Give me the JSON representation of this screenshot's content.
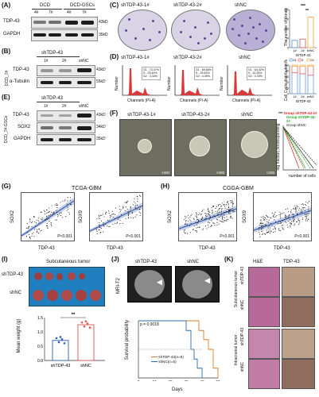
{
  "panels": {
    "A": "(A)",
    "B": "(B)",
    "C": "(C)",
    "D": "(D)",
    "E": "(E)",
    "F": "(F)",
    "G": "(G)",
    "H": "(H)",
    "I": "(I)",
    "J": "(J)",
    "K": "(K)"
  },
  "A": {
    "groups": [
      "DCD",
      "DCD-GSCs"
    ],
    "lanes": [
      "4#",
      "7#",
      "4#",
      "7#"
    ],
    "rows": [
      "TDP-43",
      "GAPDH"
    ],
    "sizes": [
      "43kD",
      "35kD"
    ]
  },
  "B": {
    "title": "shTDP-43",
    "lanes": [
      "1#",
      "2#",
      "shNC"
    ],
    "side": "DCD_7#",
    "rows": [
      "TDP-43",
      "α-Tubulin"
    ],
    "sizes": [
      "43kD",
      "55kD"
    ]
  },
  "C": {
    "dishes": [
      "shTDP-43-1#",
      "shTDP-43-2#",
      "shNC"
    ],
    "bar": {
      "ylabel": "The number of clones",
      "xlabels": [
        "1#",
        "2#",
        "shNC"
      ],
      "group": "shTDP-43",
      "sig": [
        "***",
        "**"
      ],
      "yticks": [
        "0",
        "50",
        "100",
        "150",
        "200"
      ]
    }
  },
  "D": {
    "hist_titles": [
      "shTDP-43-1#",
      "shTDP-43-2#",
      "shNC"
    ],
    "ylabel": "Number",
    "xlabel": "Channels (PI-A)",
    "legends": [
      [
        "G1 : 73.07%",
        "S : 23.49%",
        "G2 : 3.44%"
      ],
      [
        "G1 : 69.68%",
        "S : 25.83%",
        "G2 : 4.49%"
      ],
      [
        "G1 : 64.42%",
        "S : 32.25%",
        "G2 : 3.33%"
      ]
    ],
    "bar": {
      "ylabel": "Cell Cycle distribution%",
      "legend": [
        "G1",
        "S",
        "G2"
      ],
      "xlabels": [
        "1#",
        "2#",
        "shNC"
      ],
      "group": "shTDP-43",
      "yticks": [
        "0",
        "20",
        "40",
        "60",
        "80",
        "100"
      ]
    }
  },
  "E": {
    "title": "shTDP-43",
    "lanes": [
      "1#",
      "2#",
      "shNC"
    ],
    "side": "DCD_7#-GSCs",
    "rows": [
      "TDP-43",
      "SOX2",
      "GAPDH"
    ],
    "sizes": [
      "43kD",
      "34kD",
      "35kD"
    ]
  },
  "F": {
    "images": [
      "shTDP-43-1#",
      "shTDP-43-2#",
      "shNC"
    ],
    "scale": "×200",
    "ylabel": "log fraction nonresponding",
    "xlabel": "number of cells",
    "legend": [
      "Group shTDP-43-1#",
      "Group shTDP-43-2#",
      "Group shNC"
    ],
    "sig": "***"
  },
  "G": {
    "title": "TCGA-GBM",
    "plots": [
      {
        "y": "SOX2",
        "x": "TDP-43",
        "p": "P<0.001"
      },
      {
        "y": "SOX9",
        "x": "TDP-43",
        "p": "P<0.001"
      }
    ]
  },
  "H": {
    "title": "CGGA-GBM",
    "plots": [
      {
        "y": "SOX2",
        "x": "TDP-43",
        "p": "P<0.001"
      },
      {
        "y": "SOX9",
        "x": "TDP-43",
        "p": "P<0.001"
      }
    ]
  },
  "I": {
    "title": "Subcutaneous tumor",
    "rows": [
      "shTDP-43",
      "shNC"
    ],
    "ylabel": "Mean weight (g)",
    "xlabels": [
      "shTDP-43",
      "shNC"
    ],
    "sig": "**",
    "yticks": [
      "0.0",
      "0.5",
      "1.0",
      "1.5"
    ]
  },
  "J": {
    "labels": [
      "shTDP-43",
      "shNC"
    ],
    "mri": "MRI-T2",
    "p": "p = 0.0018",
    "ylabel": "Survival probability",
    "xlabel": "Days",
    "legend": [
      "shTDP-43(n=6)",
      "shNC(n=6)"
    ],
    "xticks": [
      "0",
      "10",
      "20",
      "30",
      "40",
      "50"
    ]
  },
  "K": {
    "cols": [
      "H&E",
      "TDP-43"
    ],
    "groups": [
      "Subcutaneous tumor",
      "Intracranial tumor"
    ],
    "rows": [
      "shTDP-43",
      "shNC",
      "shTDP-43",
      "shNC"
    ]
  },
  "chart_data": [
    {
      "type": "bar",
      "title": "",
      "categories": [
        "1#",
        "2#",
        "shNC"
      ],
      "values": [
        38,
        45,
        160
      ],
      "ylabel": "The number of clones",
      "ylim": [
        0,
        200
      ]
    },
    {
      "type": "bar",
      "title": "",
      "categories": [
        "1#",
        "2#",
        "shNC"
      ],
      "series": [
        {
          "name": "G1",
          "values": [
            73.07,
            69.68,
            64.42
          ]
        },
        {
          "name": "S",
          "values": [
            23.49,
            25.83,
            32.25
          ]
        },
        {
          "name": "G2",
          "values": [
            3.44,
            4.49,
            3.33
          ]
        }
      ],
      "ylabel": "Cell Cycle distribution%",
      "ylim": [
        0,
        100
      ]
    },
    {
      "type": "bar",
      "title": "",
      "categories": [
        "shTDP-43",
        "shNC"
      ],
      "values": [
        0.7,
        1.25
      ],
      "ylabel": "Mean weight (g)",
      "ylim": [
        0,
        1.5
      ]
    },
    {
      "type": "line",
      "title": "",
      "xlabel": "Days",
      "ylabel": "Survival probability",
      "series": [
        {
          "name": "shTDP-43(n=6)",
          "x": [
            0,
            38,
            41,
            44,
            47,
            50
          ],
          "y": [
            1.0,
            0.83,
            0.67,
            0.5,
            0.17,
            0.0
          ]
        },
        {
          "name": "shNC(n=6)",
          "x": [
            0,
            30,
            33,
            35,
            37,
            40
          ],
          "y": [
            1.0,
            0.83,
            0.5,
            0.33,
            0.17,
            0.0
          ]
        }
      ]
    }
  ]
}
